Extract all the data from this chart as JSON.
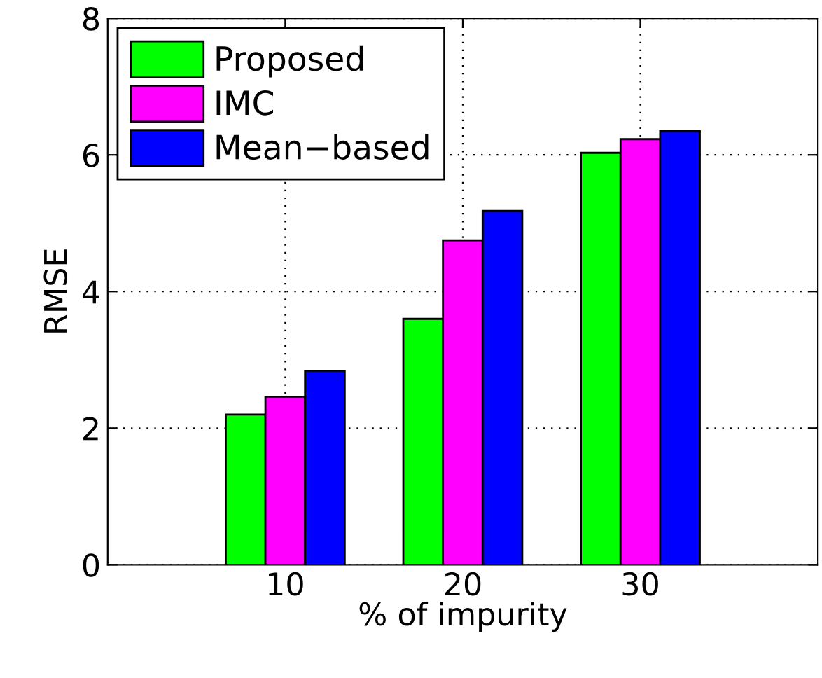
{
  "chart_data": {
    "type": "bar",
    "xlabel": "% of impurity",
    "ylabel": "RMSE",
    "categories": [
      "10",
      "20",
      "30"
    ],
    "series": [
      {
        "name": "Proposed",
        "color": "#00ff00",
        "values": [
          2.2,
          3.6,
          6.03
        ]
      },
      {
        "name": "IMC",
        "color": "#ff00ff",
        "values": [
          2.46,
          4.75,
          6.23
        ]
      },
      {
        "name": "Mean−based",
        "color": "#0000ff",
        "values": [
          2.84,
          5.18,
          6.35
        ]
      }
    ],
    "ylim": [
      0,
      8
    ],
    "yticks": [
      0,
      2,
      4,
      6,
      8
    ],
    "grid": true,
    "legend": "top left"
  }
}
